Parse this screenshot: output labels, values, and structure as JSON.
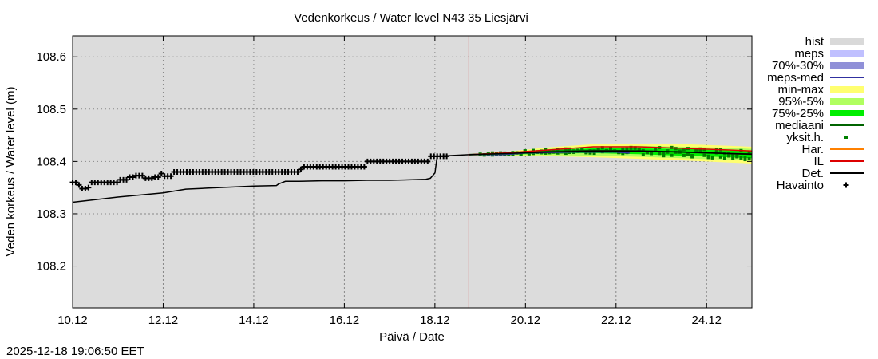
{
  "chart_data": {
    "type": "line",
    "title": "Vedenkorkeus / Water level   N43 35 Liesjärvi",
    "xlabel": "Päivä / Date",
    "ylabel": "Veden korkeus / Water level (m)",
    "timestamp": "2025-12-18 19:06:50 EET",
    "xlim": [
      0,
      15
    ],
    "ylim": [
      108.12,
      108.64
    ],
    "x_unit": "days since 10.12",
    "xticks": [
      {
        "x": 0,
        "label": "10.12"
      },
      {
        "x": 2,
        "label": "12.12"
      },
      {
        "x": 4,
        "label": "14.12"
      },
      {
        "x": 6,
        "label": "16.12"
      },
      {
        "x": 8,
        "label": "18.12"
      },
      {
        "x": 10,
        "label": "20.12"
      },
      {
        "x": 12,
        "label": "22.12"
      },
      {
        "x": 14,
        "label": "24.12"
      }
    ],
    "yticks": [
      {
        "y": 108.2,
        "label": "108.2"
      },
      {
        "y": 108.3,
        "label": "108.3"
      },
      {
        "y": 108.4,
        "label": "108.4"
      },
      {
        "y": 108.5,
        "label": "108.5"
      },
      {
        "y": 108.6,
        "label": "108.6"
      }
    ],
    "now_x": 8.75,
    "series": [
      {
        "name": "Havainto",
        "color": "#000000",
        "points": [
          [
            0.0,
            108.36
          ],
          [
            0.1,
            108.355
          ],
          [
            0.2,
            108.348
          ],
          [
            0.3,
            108.35
          ],
          [
            0.4,
            108.36
          ],
          [
            0.6,
            108.36
          ],
          [
            0.8,
            108.36
          ],
          [
            1.0,
            108.365
          ],
          [
            1.2,
            108.37
          ],
          [
            1.4,
            108.373
          ],
          [
            1.6,
            108.368
          ],
          [
            1.8,
            108.37
          ],
          [
            1.9,
            108.377
          ],
          [
            2.0,
            108.372
          ],
          [
            2.2,
            108.38
          ],
          [
            2.4,
            108.38
          ],
          [
            2.6,
            108.38
          ],
          [
            2.8,
            108.38
          ],
          [
            3.0,
            108.38
          ],
          [
            3.5,
            108.38
          ],
          [
            4.0,
            108.38
          ],
          [
            4.5,
            108.38
          ],
          [
            4.9,
            108.38
          ],
          [
            5.0,
            108.385
          ],
          [
            5.1,
            108.39
          ],
          [
            5.5,
            108.39
          ],
          [
            6.0,
            108.39
          ],
          [
            6.4,
            108.39
          ],
          [
            6.5,
            108.4
          ],
          [
            7.0,
            108.4
          ],
          [
            7.5,
            108.4
          ],
          [
            7.8,
            108.4
          ],
          [
            7.9,
            108.41
          ],
          [
            8.1,
            108.41
          ],
          [
            8.3,
            108.41
          ]
        ]
      },
      {
        "name": "Det.",
        "color": "#000000",
        "points": [
          [
            0.0,
            108.322
          ],
          [
            0.5,
            108.327
          ],
          [
            1.0,
            108.332
          ],
          [
            1.5,
            108.336
          ],
          [
            2.0,
            108.34
          ],
          [
            2.5,
            108.347
          ],
          [
            3.0,
            108.349
          ],
          [
            3.5,
            108.351
          ],
          [
            4.0,
            108.353
          ],
          [
            4.5,
            108.354
          ],
          [
            4.55,
            108.357
          ],
          [
            4.7,
            108.362
          ],
          [
            5.0,
            108.362
          ],
          [
            5.5,
            108.363
          ],
          [
            6.0,
            108.363
          ],
          [
            6.5,
            108.364
          ],
          [
            7.0,
            108.364
          ],
          [
            7.5,
            108.365
          ],
          [
            7.8,
            108.366
          ],
          [
            7.9,
            108.368
          ],
          [
            8.0,
            108.378
          ],
          [
            8.05,
            108.41
          ],
          [
            8.75,
            108.413
          ],
          [
            9.5,
            108.415
          ],
          [
            10.5,
            108.418
          ],
          [
            11.5,
            108.42
          ],
          [
            12.5,
            108.42
          ],
          [
            13.5,
            108.418
          ],
          [
            14.5,
            108.415
          ],
          [
            15.0,
            108.414
          ]
        ]
      },
      {
        "name": "IL",
        "color": "#dd0000",
        "points": [
          [
            8.75,
            108.413
          ],
          [
            9.5,
            108.416
          ],
          [
            10.5,
            108.422
          ],
          [
            11.5,
            108.428
          ],
          [
            12.5,
            108.428
          ],
          [
            13.5,
            108.425
          ],
          [
            14.5,
            108.422
          ],
          [
            15.0,
            108.42
          ]
        ]
      },
      {
        "name": "mediaani",
        "color": "#006400",
        "points": [
          [
            8.75,
            108.413
          ],
          [
            9.5,
            108.415
          ],
          [
            10.5,
            108.419
          ],
          [
            11.5,
            108.421
          ],
          [
            12.5,
            108.42
          ],
          [
            13.5,
            108.418
          ],
          [
            14.5,
            108.415
          ],
          [
            15.0,
            108.414
          ]
        ]
      }
    ],
    "bands": [
      {
        "name": "min-max",
        "color": "#ffff70",
        "x": [
          8.75,
          9.5,
          10.5,
          11.5,
          12.5,
          13.5,
          14.5,
          15.0
        ],
        "low": [
          108.412,
          108.411,
          108.41,
          108.408,
          108.405,
          108.402,
          108.398,
          108.396
        ],
        "high": [
          108.414,
          108.418,
          108.427,
          108.433,
          108.434,
          108.433,
          108.43,
          108.428
        ]
      },
      {
        "name": "95%-5%",
        "color": "#b0ff60",
        "x": [
          8.75,
          9.5,
          10.5,
          11.5,
          12.5,
          13.5,
          14.5,
          15.0
        ],
        "low": [
          108.412,
          108.412,
          108.412,
          108.411,
          108.409,
          108.406,
          108.403,
          108.401
        ],
        "high": [
          108.414,
          108.417,
          108.424,
          108.429,
          108.43,
          108.428,
          108.426,
          108.424
        ]
      },
      {
        "name": "75%-25%",
        "color": "#00ee00",
        "x": [
          8.75,
          9.5,
          10.5,
          11.5,
          12.5,
          13.5,
          14.5,
          15.0
        ],
        "low": [
          108.413,
          108.413,
          108.415,
          108.416,
          108.414,
          108.411,
          108.408,
          108.406
        ],
        "high": [
          108.414,
          108.416,
          108.422,
          108.425,
          108.425,
          108.424,
          108.421,
          108.42
        ]
      }
    ],
    "meps_median": {
      "name": "meps-med",
      "color": "#3030a0",
      "points": [
        [
          8.75,
          108.413
        ],
        [
          9.5,
          108.413
        ],
        [
          10.0,
          108.416
        ],
        [
          11.0,
          108.418
        ],
        [
          12.0,
          108.418
        ],
        [
          12.3,
          108.416
        ]
      ]
    },
    "scatter_color": "#008000",
    "legend": [
      {
        "label": "hist",
        "kind": "band",
        "color": "#d9d9d9"
      },
      {
        "label": "meps",
        "kind": "band",
        "color": "#c0c0ff"
      },
      {
        "label": "70%-30%",
        "kind": "band",
        "color": "#9090d8"
      },
      {
        "label": "meps-med",
        "kind": "line",
        "color": "#3030a0"
      },
      {
        "label": "min-max",
        "kind": "band",
        "color": "#ffff70"
      },
      {
        "label": "95%-5%",
        "kind": "band",
        "color": "#b0ff60"
      },
      {
        "label": "75%-25%",
        "kind": "band",
        "color": "#00ee00"
      },
      {
        "label": "mediaani",
        "kind": "line",
        "color": "#006400"
      },
      {
        "label": "yksit.h.",
        "kind": "dot",
        "color": "#008000"
      },
      {
        "label": "Har.",
        "kind": "line",
        "color": "#ff8000"
      },
      {
        "label": "IL",
        "kind": "line",
        "color": "#dd0000"
      },
      {
        "label": "Det.",
        "kind": "line",
        "color": "#000000"
      },
      {
        "label": "Havainto",
        "kind": "plus",
        "color": "#000000"
      }
    ]
  }
}
